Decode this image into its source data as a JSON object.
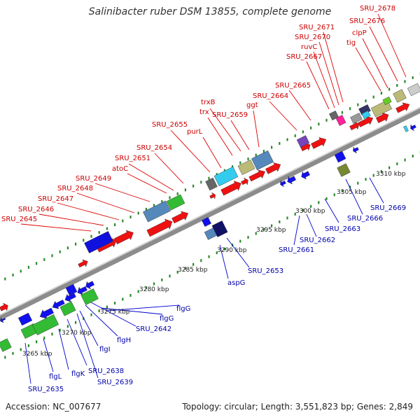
{
  "title": "Salinibacter ruber DSM 13855, complete genome",
  "footer": {
    "accession": "Accession: NC_007677",
    "summary": "Topology: circular; Length: 3,551,823 bp; Genes: 2,849"
  },
  "colors": {
    "forward_gene": "#ee1111",
    "reverse_gene": "#1111ee",
    "forward_label": "#cc0000",
    "reverse_label": "#0000aa",
    "backbone": "#8c8c8c",
    "tick": "#2a8a2a"
  },
  "scale_labels": [
    "3265 kbp",
    "3270 kbp",
    "3275 kbp",
    "3280 kbp",
    "3285 kbp",
    "3290 kbp",
    "3295 kbp",
    "3300 kbp",
    "3305 kbp",
    "3310 kbp"
  ],
  "forward_labels": [
    "SRU_2645",
    "SRU_2646",
    "SRU_2647",
    "SRU_2648",
    "SRU_2649",
    "atoC",
    "SRU_2651",
    "SRU_2654",
    "SRU_2655",
    "purL",
    "trx",
    "trxB",
    "SRU_2659",
    "ggt",
    "SRU_2664",
    "SRU_2665",
    "SRU_2667",
    "ruvC",
    "SRU_2670",
    "SRU_2671",
    "tig",
    "clpP",
    "SRU_2676",
    "SRU_2678"
  ],
  "reverse_labels": [
    "SRU_2635",
    "flgL",
    "flgK",
    "SRU_2638",
    "SRU_2639",
    "flgI",
    "flgH",
    "SRU_2642",
    "flgG",
    "flgG",
    "aspG",
    "SRU_2653",
    "SRU_2661",
    "SRU_2662",
    "SRU_2663",
    "SRU_2666",
    "SRU_2669"
  ]
}
